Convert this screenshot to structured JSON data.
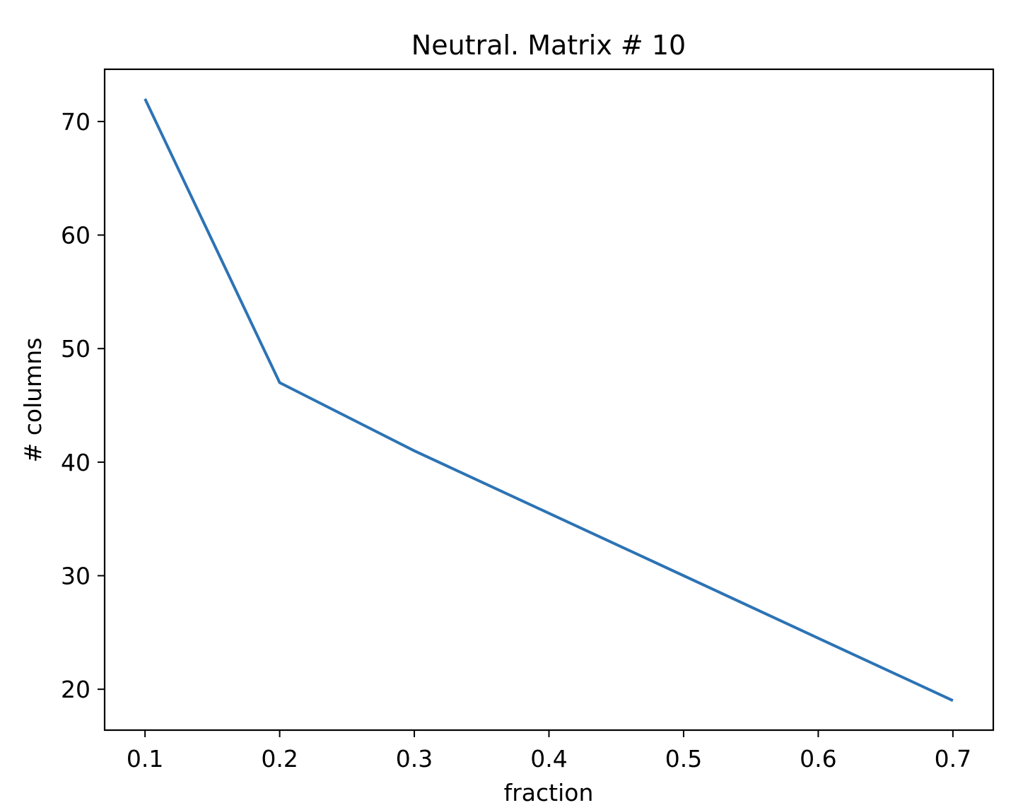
{
  "chart_data": {
    "type": "line",
    "title": "Neutral. Matrix # 10",
    "xlabel": "fraction",
    "ylabel": "# columns",
    "xlim": [
      0.07,
      0.73
    ],
    "ylim": [
      16.4,
      74.6
    ],
    "xticks": [
      0.1,
      0.2,
      0.3,
      0.4,
      0.5,
      0.6,
      0.7
    ],
    "xtick_labels": [
      "0.1",
      "0.2",
      "0.3",
      "0.4",
      "0.5",
      "0.6",
      "0.7"
    ],
    "yticks": [
      20,
      30,
      40,
      50,
      60,
      70
    ],
    "ytick_labels": [
      "20",
      "30",
      "40",
      "50",
      "60",
      "70"
    ],
    "grid": false,
    "legend": "none",
    "series": [
      {
        "color": "#2c73b4",
        "x": [
          0.1,
          0.2,
          0.3,
          0.4,
          0.5,
          0.6,
          0.7
        ],
        "y": [
          72,
          47,
          41,
          35.5,
          30,
          24.5,
          19
        ]
      }
    ]
  }
}
